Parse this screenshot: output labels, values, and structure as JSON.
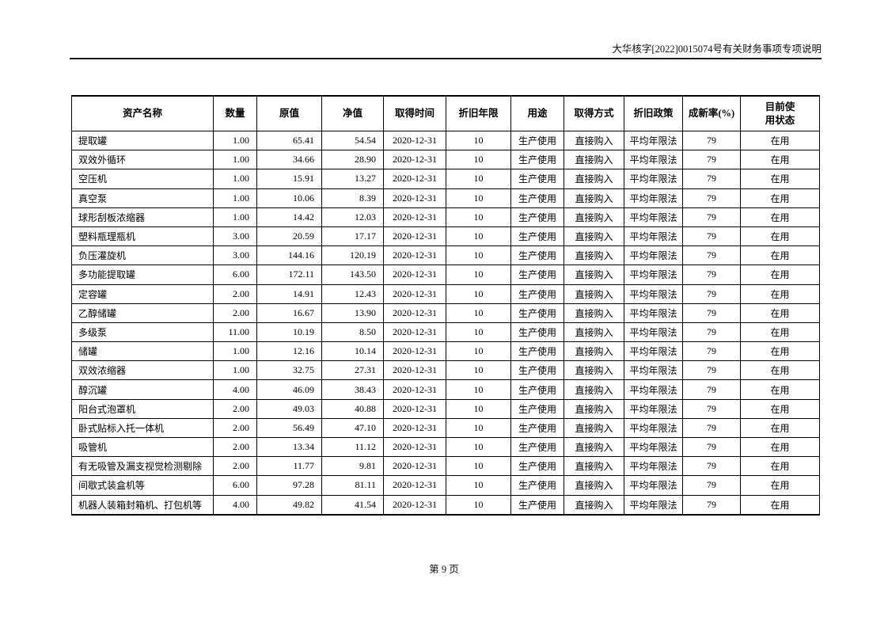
{
  "page_header": {
    "title": "大华核字[2022]0015074号有关财务事项专项说明"
  },
  "table": {
    "columns": [
      "资产名称",
      "数量",
      "原值",
      "净值",
      "取得时间",
      "折旧年限",
      "用途",
      "取得方式",
      "折旧政策",
      "成新率(%)",
      "目前使用状态"
    ],
    "rows": [
      [
        "提取罐",
        "1.00",
        "65.41",
        "54.54",
        "2020-12-31",
        "10",
        "生产使用",
        "直接购入",
        "平均年限法",
        "79",
        "在用"
      ],
      [
        "双效外循环",
        "1.00",
        "34.66",
        "28.90",
        "2020-12-31",
        "10",
        "生产使用",
        "直接购入",
        "平均年限法",
        "79",
        "在用"
      ],
      [
        "空压机",
        "1.00",
        "15.91",
        "13.27",
        "2020-12-31",
        "10",
        "生产使用",
        "直接购入",
        "平均年限法",
        "79",
        "在用"
      ],
      [
        "真空泵",
        "1.00",
        "10.06",
        "8.39",
        "2020-12-31",
        "10",
        "生产使用",
        "直接购入",
        "平均年限法",
        "79",
        "在用"
      ],
      [
        "球形刮板浓缩器",
        "1.00",
        "14.42",
        "12.03",
        "2020-12-31",
        "10",
        "生产使用",
        "直接购入",
        "平均年限法",
        "79",
        "在用"
      ],
      [
        "塑料瓶理瓶机",
        "3.00",
        "20.59",
        "17.17",
        "2020-12-31",
        "10",
        "生产使用",
        "直接购入",
        "平均年限法",
        "79",
        "在用"
      ],
      [
        "负压灌旋机",
        "3.00",
        "144.16",
        "120.19",
        "2020-12-31",
        "10",
        "生产使用",
        "直接购入",
        "平均年限法",
        "79",
        "在用"
      ],
      [
        "多功能提取罐",
        "6.00",
        "172.11",
        "143.50",
        "2020-12-31",
        "10",
        "生产使用",
        "直接购入",
        "平均年限法",
        "79",
        "在用"
      ],
      [
        "定容罐",
        "2.00",
        "14.91",
        "12.43",
        "2020-12-31",
        "10",
        "生产使用",
        "直接购入",
        "平均年限法",
        "79",
        "在用"
      ],
      [
        "乙醇储罐",
        "2.00",
        "16.67",
        "13.90",
        "2020-12-31",
        "10",
        "生产使用",
        "直接购入",
        "平均年限法",
        "79",
        "在用"
      ],
      [
        "多级泵",
        "11.00",
        "10.19",
        "8.50",
        "2020-12-31",
        "10",
        "生产使用",
        "直接购入",
        "平均年限法",
        "79",
        "在用"
      ],
      [
        "储罐",
        "1.00",
        "12.16",
        "10.14",
        "2020-12-31",
        "10",
        "生产使用",
        "直接购入",
        "平均年限法",
        "79",
        "在用"
      ],
      [
        "双效浓缩器",
        "1.00",
        "32.75",
        "27.31",
        "2020-12-31",
        "10",
        "生产使用",
        "直接购入",
        "平均年限法",
        "79",
        "在用"
      ],
      [
        "醇沉罐",
        "4.00",
        "46.09",
        "38.43",
        "2020-12-31",
        "10",
        "生产使用",
        "直接购入",
        "平均年限法",
        "79",
        "在用"
      ],
      [
        "阳台式泡罩机",
        "2.00",
        "49.03",
        "40.88",
        "2020-12-31",
        "10",
        "生产使用",
        "直接购入",
        "平均年限法",
        "79",
        "在用"
      ],
      [
        "卧式贴标入托一体机",
        "2.00",
        "56.49",
        "47.10",
        "2020-12-31",
        "10",
        "生产使用",
        "直接购入",
        "平均年限法",
        "79",
        "在用"
      ],
      [
        "吸管机",
        "2.00",
        "13.34",
        "11.12",
        "2020-12-31",
        "10",
        "生产使用",
        "直接购入",
        "平均年限法",
        "79",
        "在用"
      ],
      [
        "有无吸管及漏支视觉检测剔除",
        "2.00",
        "11.77",
        "9.81",
        "2020-12-31",
        "10",
        "生产使用",
        "直接购入",
        "平均年限法",
        "79",
        "在用"
      ],
      [
        "间歇式装盒机等",
        "6.00",
        "97.28",
        "81.11",
        "2020-12-31",
        "10",
        "生产使用",
        "直接购入",
        "平均年限法",
        "79",
        "在用"
      ],
      [
        "机器人装箱封箱机、打包机等",
        "4.00",
        "49.82",
        "41.54",
        "2020-12-31",
        "10",
        "生产使用",
        "直接购入",
        "平均年限法",
        "79",
        "在用"
      ]
    ]
  },
  "footer": {
    "page_number": "第 9 页"
  }
}
